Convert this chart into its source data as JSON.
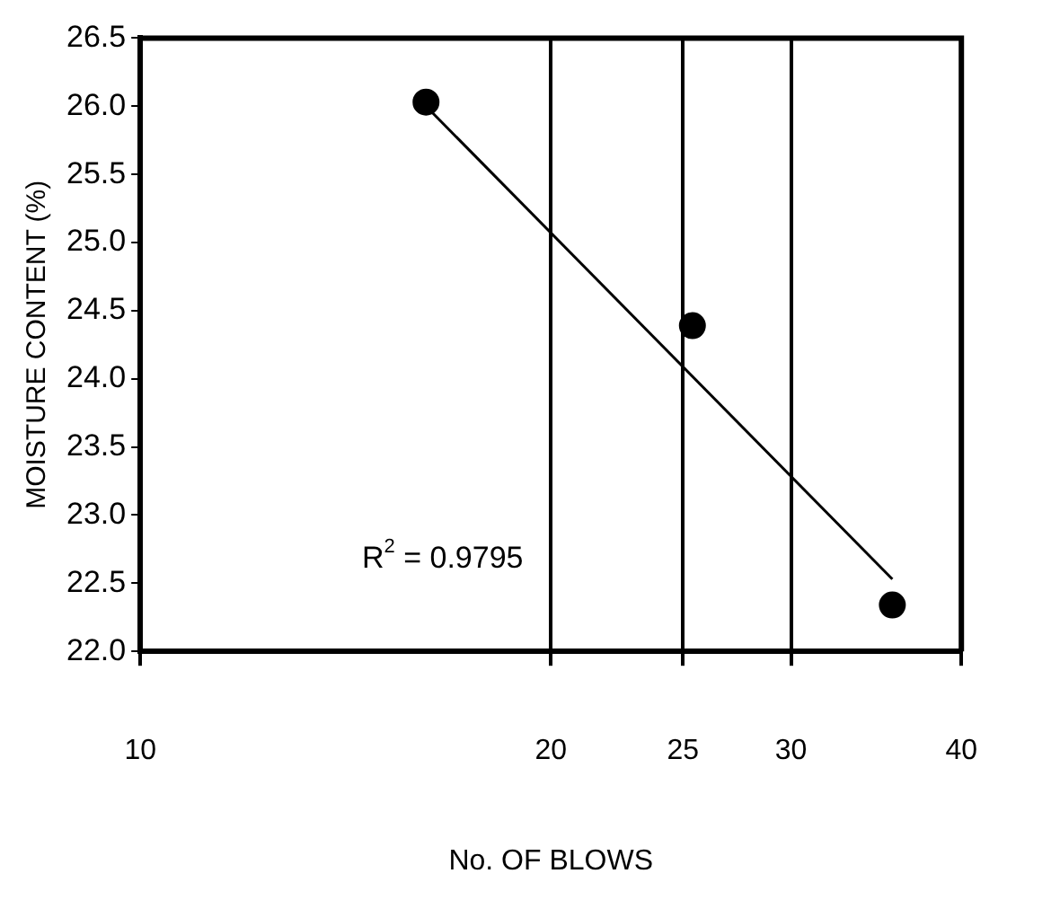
{
  "chart_data": {
    "type": "scatter",
    "xlabel": "No. OF BLOWS",
    "ylabel": "MOISTURE CONTENT (%)",
    "log": "x",
    "series": [
      {
        "color": "#000000",
        "marker": "circle",
        "x": [
          16.2,
          25.4,
          35.6
        ],
        "values": [
          26.03,
          24.39,
          22.34
        ]
      },
      {
        "type": "line",
        "color": "#000000",
        "x": [
          16.2,
          35.6
        ],
        "values": [
          26.0,
          22.53
        ]
      }
    ],
    "xlim": [
      10,
      40
    ],
    "xticks": [
      10,
      20,
      25,
      30,
      40
    ],
    "ylim": [
      22,
      26.5
    ],
    "yticks": [
      {
        "value": 22,
        "label": "22.0"
      },
      22.5,
      {
        "value": 23,
        "label": "23.0"
      },
      23.5,
      {
        "value": 24,
        "label": "24.0"
      },
      24.5,
      {
        "value": 25,
        "label": "25.0"
      },
      25.5,
      {
        "value": 26,
        "label": "26.0"
      },
      26.5
    ],
    "grid": "x",
    "annotations": [
      "R$^{2}$ = 0.9795"
    ]
  }
}
